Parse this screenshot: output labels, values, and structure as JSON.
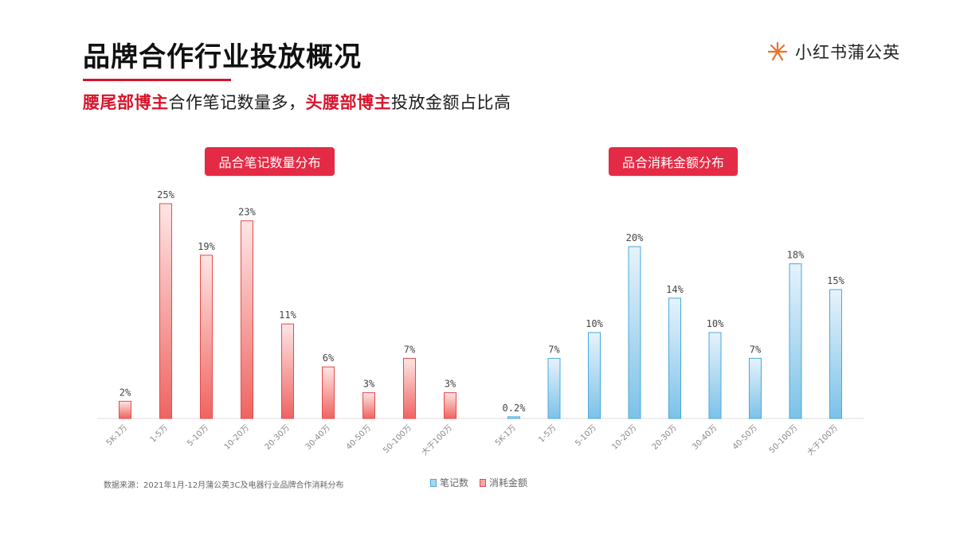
{
  "header": {
    "title": "品牌合作行业投放概况",
    "subtitle_parts": [
      {
        "text": "腰尾部博主",
        "highlight": true
      },
      {
        "text": "合作笔记数量多，",
        "highlight": false
      },
      {
        "text": "头腰部博主",
        "highlight": true
      },
      {
        "text": "投放金额占比高",
        "highlight": false
      }
    ]
  },
  "logo": {
    "text": "小红书蒲公英",
    "icon": "dandelion-icon",
    "color": "#e8742a"
  },
  "panels": {
    "left_label": "品合笔记数量分布",
    "right_label": "品合消耗金额分布"
  },
  "footer": {
    "source": "数据来源：2021年1月-12月蒲公英3C及电器行业品牌合作消耗分布"
  },
  "legend": [
    {
      "label": "笔记数",
      "color": "#4aa8dc"
    },
    {
      "label": "消耗金额",
      "color": "#e84a48"
    }
  ],
  "colors": {
    "accent": "#d7142b",
    "label_bg": "#e52a45",
    "red": "#e84a48",
    "blue": "#4aa8dc"
  },
  "chart_data": [
    {
      "type": "bar",
      "title": "品合笔记数量分布",
      "categories": [
        "5K-1万",
        "1-5万",
        "5-10万",
        "10-20万",
        "20-30万",
        "30-40万",
        "40-50万",
        "50-100万",
        "大于100万"
      ],
      "values": [
        2,
        25,
        19,
        23,
        11,
        6,
        3,
        7,
        3
      ],
      "labels": [
        "2%",
        "25%",
        "19%",
        "23%",
        "11%",
        "6%",
        "3%",
        "7%",
        "3%"
      ],
      "color": "red",
      "ylim": [
        0,
        25
      ],
      "grid": false
    },
    {
      "type": "bar",
      "title": "品合消耗金额分布",
      "categories": [
        "5K-1万",
        "1-5万",
        "5-10万",
        "10-20万",
        "20-30万",
        "30-40万",
        "40-50万",
        "50-100万",
        "大于100万"
      ],
      "values": [
        0.2,
        7,
        10,
        20,
        14,
        10,
        7,
        18,
        15
      ],
      "labels": [
        "0.2%",
        "7%",
        "10%",
        "20%",
        "14%",
        "10%",
        "7%",
        "18%",
        "15%"
      ],
      "color": "blue",
      "ylim": [
        0,
        20
      ],
      "grid": false
    }
  ]
}
